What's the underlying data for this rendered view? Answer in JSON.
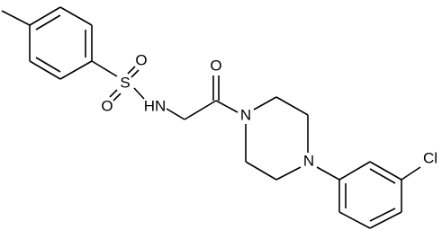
{
  "atoms": [
    {
      "label": "S"
    },
    {
      "label": "O"
    },
    {
      "label": "O"
    },
    {
      "label": "HN"
    },
    {
      "label": "O"
    },
    {
      "label": "N"
    },
    {
      "label": "N"
    },
    {
      "label": "Cl"
    }
  ]
}
